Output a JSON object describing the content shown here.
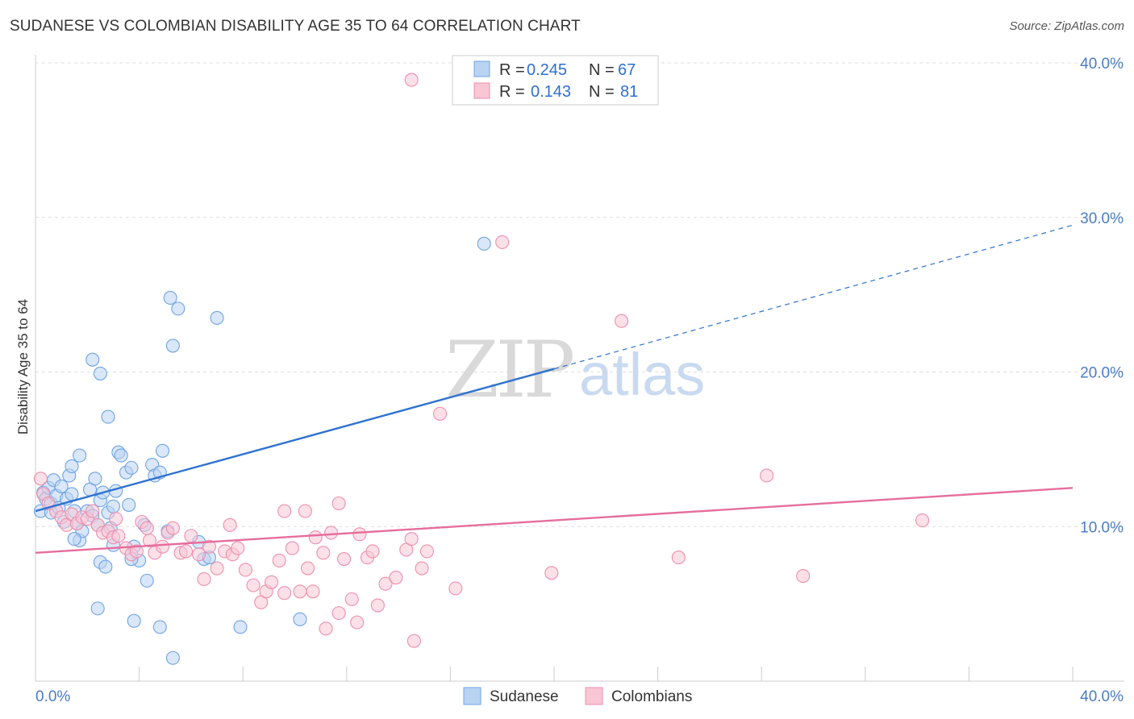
{
  "header": {
    "title": "SUDANESE VS COLOMBIAN DISABILITY AGE 35 TO 64 CORRELATION CHART",
    "source": "Source: ZipAtlas.com"
  },
  "watermark": {
    "zip": "ZIP",
    "atlas": "atlas"
  },
  "legend_top": {
    "r_label": "R =",
    "n_label": "N =",
    "rows": [
      {
        "r": "0.245",
        "n": "67",
        "color": "#a9c9ef"
      },
      {
        "r": "0.143",
        "n": "81",
        "color": "#f5b8cb"
      }
    ]
  },
  "chart_data": {
    "type": "scatter",
    "title": "SUDANESE VS COLOMBIAN DISABILITY AGE 35 TO 64 CORRELATION CHART",
    "xlabel": "",
    "ylabel": "Disability Age 35 to 64",
    "xlim": [
      0,
      40
    ],
    "ylim": [
      0,
      40
    ],
    "x_tick_labels": [
      "0.0%",
      "40.0%"
    ],
    "y_ticks": [
      10,
      20,
      30,
      40
    ],
    "y_tick_labels": [
      "10.0%",
      "20.0%",
      "30.0%",
      "40.0%"
    ],
    "series": [
      {
        "name": "Sudanese",
        "color": "#6fa3e4",
        "fill": "#b9d3f2",
        "trend": {
          "x0": 0,
          "y0": 11.0,
          "x1": 20,
          "y1": 20.2,
          "dashed_to_x": 40,
          "dashed_to_y": 29.5,
          "color": "#2f72d0"
        },
        "points": [
          [
            0.2,
            11.0
          ],
          [
            0.3,
            12.2
          ],
          [
            0.4,
            11.8
          ],
          [
            0.5,
            12.5
          ],
          [
            0.6,
            11.5
          ],
          [
            0.7,
            13.0
          ],
          [
            0.6,
            10.9
          ],
          [
            0.8,
            12.0
          ],
          [
            0.9,
            11.2
          ],
          [
            1.0,
            12.6
          ],
          [
            1.1,
            10.3
          ],
          [
            1.2,
            11.8
          ],
          [
            1.3,
            13.3
          ],
          [
            1.4,
            12.1
          ],
          [
            1.5,
            11.0
          ],
          [
            1.6,
            10.2
          ],
          [
            1.7,
            9.1
          ],
          [
            1.8,
            9.7
          ],
          [
            2.0,
            11.0
          ],
          [
            2.1,
            12.4
          ],
          [
            2.2,
            10.7
          ],
          [
            2.3,
            13.1
          ],
          [
            2.4,
            10.1
          ],
          [
            2.5,
            11.7
          ],
          [
            2.6,
            12.2
          ],
          [
            1.4,
            13.9
          ],
          [
            1.7,
            14.6
          ],
          [
            2.8,
            10.9
          ],
          [
            2.9,
            9.9
          ],
          [
            3.0,
            11.3
          ],
          [
            3.1,
            12.3
          ],
          [
            3.2,
            14.8
          ],
          [
            3.3,
            14.6
          ],
          [
            3.5,
            13.5
          ],
          [
            3.6,
            11.4
          ],
          [
            3.7,
            13.8
          ],
          [
            3.8,
            8.7
          ],
          [
            4.0,
            7.8
          ],
          [
            4.2,
            10.1
          ],
          [
            4.3,
            6.5
          ],
          [
            4.5,
            14.0
          ],
          [
            4.6,
            13.3
          ],
          [
            4.8,
            13.5
          ],
          [
            4.9,
            14.9
          ],
          [
            2.2,
            20.8
          ],
          [
            2.5,
            19.9
          ],
          [
            2.8,
            17.1
          ],
          [
            3.0,
            8.8
          ],
          [
            2.5,
            7.7
          ],
          [
            2.7,
            7.4
          ],
          [
            1.5,
            9.2
          ],
          [
            5.1,
            9.7
          ],
          [
            6.3,
            9.0
          ],
          [
            6.5,
            7.9
          ],
          [
            6.7,
            8.0
          ],
          [
            7.0,
            23.5
          ],
          [
            5.2,
            24.8
          ],
          [
            5.5,
            24.1
          ],
          [
            5.3,
            21.7
          ],
          [
            3.8,
            3.9
          ],
          [
            4.8,
            3.5
          ],
          [
            5.3,
            1.5
          ],
          [
            7.9,
            3.5
          ],
          [
            10.2,
            4.0
          ],
          [
            2.4,
            4.7
          ],
          [
            17.3,
            28.3
          ],
          [
            3.7,
            7.9
          ]
        ]
      },
      {
        "name": "Colombians",
        "color": "#ec8fae",
        "fill": "#f8c6d5",
        "trend": {
          "x0": 0,
          "y0": 8.3,
          "x1": 40,
          "y1": 12.5,
          "color": "#e56e9b"
        },
        "points": [
          [
            0.2,
            13.1
          ],
          [
            0.3,
            12.1
          ],
          [
            0.5,
            11.5
          ],
          [
            0.8,
            11.0
          ],
          [
            1.0,
            10.6
          ],
          [
            1.2,
            10.1
          ],
          [
            1.4,
            10.8
          ],
          [
            1.6,
            10.2
          ],
          [
            1.8,
            10.6
          ],
          [
            2.0,
            10.5
          ],
          [
            2.2,
            11.0
          ],
          [
            2.4,
            10.1
          ],
          [
            2.6,
            9.6
          ],
          [
            2.8,
            9.7
          ],
          [
            3.0,
            9.3
          ],
          [
            3.2,
            9.4
          ],
          [
            3.5,
            8.6
          ],
          [
            3.7,
            8.2
          ],
          [
            3.9,
            8.4
          ],
          [
            4.1,
            10.3
          ],
          [
            4.4,
            9.1
          ],
          [
            4.6,
            8.3
          ],
          [
            4.9,
            8.7
          ],
          [
            5.1,
            9.6
          ],
          [
            5.3,
            9.9
          ],
          [
            5.6,
            8.3
          ],
          [
            5.8,
            8.4
          ],
          [
            6.0,
            9.4
          ],
          [
            6.3,
            8.2
          ],
          [
            6.5,
            6.6
          ],
          [
            6.7,
            8.7
          ],
          [
            7.0,
            7.3
          ],
          [
            7.3,
            8.4
          ],
          [
            7.6,
            8.2
          ],
          [
            7.8,
            8.6
          ],
          [
            8.1,
            7.2
          ],
          [
            8.4,
            6.2
          ],
          [
            8.7,
            5.1
          ],
          [
            8.9,
            5.8
          ],
          [
            9.1,
            6.4
          ],
          [
            9.4,
            7.8
          ],
          [
            9.6,
            5.7
          ],
          [
            9.9,
            8.6
          ],
          [
            10.2,
            5.8
          ],
          [
            10.5,
            7.3
          ],
          [
            10.8,
            9.3
          ],
          [
            11.1,
            8.3
          ],
          [
            11.4,
            9.6
          ],
          [
            11.7,
            4.4
          ],
          [
            11.9,
            7.9
          ],
          [
            12.2,
            5.3
          ],
          [
            12.5,
            9.5
          ],
          [
            12.8,
            8.0
          ],
          [
            13.0,
            8.4
          ],
          [
            13.5,
            6.3
          ],
          [
            13.9,
            6.7
          ],
          [
            14.3,
            8.5
          ],
          [
            14.5,
            9.2
          ],
          [
            14.9,
            7.3
          ],
          [
            15.1,
            8.4
          ],
          [
            15.6,
            17.3
          ],
          [
            16.2,
            6.0
          ],
          [
            18.0,
            28.4
          ],
          [
            19.9,
            7.0
          ],
          [
            22.6,
            23.3
          ],
          [
            24.8,
            8.0
          ],
          [
            28.2,
            13.3
          ],
          [
            29.6,
            6.8
          ],
          [
            34.2,
            10.4
          ],
          [
            14.5,
            38.9
          ],
          [
            7.5,
            10.1
          ],
          [
            4.3,
            9.9
          ],
          [
            9.6,
            11.0
          ],
          [
            10.4,
            11.0
          ],
          [
            11.7,
            11.5
          ],
          [
            13.2,
            4.9
          ],
          [
            14.6,
            2.6
          ],
          [
            11.2,
            3.4
          ],
          [
            12.4,
            3.8
          ],
          [
            3.1,
            10.5
          ],
          [
            10.7,
            5.8
          ]
        ]
      }
    ],
    "legend": [
      "Sudanese",
      "Colombians"
    ]
  }
}
